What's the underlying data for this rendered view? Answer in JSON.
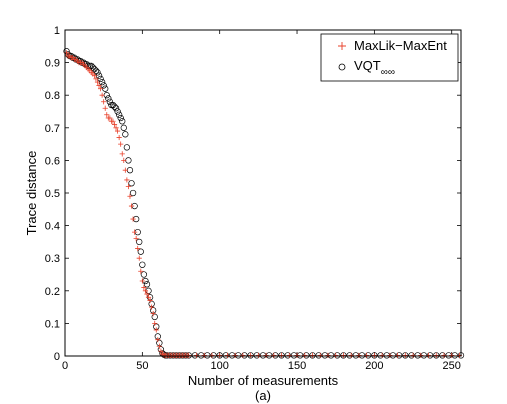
{
  "chart_data": {
    "type": "scatter",
    "title": "",
    "caption": "(a)",
    "xlabel": "Number of measurements",
    "ylabel": "Trace distance",
    "xlim": [
      0,
      256
    ],
    "ylim": [
      0,
      1
    ],
    "xticks": [
      0,
      50,
      100,
      150,
      200,
      250
    ],
    "yticks": [
      0,
      0.1,
      0.2,
      0.3,
      0.4,
      0.5,
      0.6,
      0.7,
      0.8,
      0.9,
      1
    ],
    "grid": false,
    "legend_position": "top-right",
    "colors": {
      "maxlik": "#e8402a",
      "vqt": "#000000"
    },
    "series": [
      {
        "name": "MaxLik−MaxEnt",
        "marker": "plus",
        "points": [
          [
            1,
            0.93
          ],
          [
            2,
            0.92
          ],
          [
            3,
            0.92
          ],
          [
            4,
            0.915
          ],
          [
            5,
            0.915
          ],
          [
            6,
            0.91
          ],
          [
            7,
            0.91
          ],
          [
            8,
            0.905
          ],
          [
            9,
            0.9
          ],
          [
            10,
            0.9
          ],
          [
            11,
            0.9
          ],
          [
            12,
            0.895
          ],
          [
            13,
            0.89
          ],
          [
            14,
            0.885
          ],
          [
            15,
            0.88
          ],
          [
            16,
            0.875
          ],
          [
            17,
            0.87
          ],
          [
            18,
            0.865
          ],
          [
            19,
            0.86
          ],
          [
            20,
            0.85
          ],
          [
            21,
            0.84
          ],
          [
            22,
            0.83
          ],
          [
            23,
            0.82
          ],
          [
            24,
            0.8
          ],
          [
            25,
            0.78
          ],
          [
            26,
            0.76
          ],
          [
            27,
            0.74
          ],
          [
            28,
            0.73
          ],
          [
            29,
            0.73
          ],
          [
            30,
            0.72
          ],
          [
            31,
            0.72
          ],
          [
            32,
            0.71
          ],
          [
            33,
            0.7
          ],
          [
            34,
            0.69
          ],
          [
            35,
            0.67
          ],
          [
            36,
            0.65
          ],
          [
            37,
            0.62
          ],
          [
            38,
            0.6
          ],
          [
            39,
            0.57
          ],
          [
            40,
            0.54
          ],
          [
            41,
            0.52
          ],
          [
            42,
            0.49
          ],
          [
            43,
            0.46
          ],
          [
            44,
            0.42
          ],
          [
            45,
            0.38
          ],
          [
            46,
            0.36
          ],
          [
            47,
            0.33
          ],
          [
            48,
            0.3
          ],
          [
            49,
            0.26
          ],
          [
            50,
            0.23
          ],
          [
            51,
            0.21
          ],
          [
            52,
            0.2
          ],
          [
            53,
            0.19
          ],
          [
            54,
            0.18
          ],
          [
            55,
            0.17
          ],
          [
            56,
            0.15
          ],
          [
            57,
            0.13
          ],
          [
            58,
            0.1
          ],
          [
            59,
            0.08
          ],
          [
            60,
            0.05
          ],
          [
            61,
            0.03
          ],
          [
            62,
            0.015
          ],
          [
            63,
            0.006
          ],
          [
            64,
            0.003
          ],
          [
            65,
            0.002
          ],
          [
            66,
            0.002
          ],
          [
            67,
            0.002
          ],
          [
            68,
            0.002
          ],
          [
            69,
            0.002
          ],
          [
            70,
            0.002
          ],
          [
            71,
            0.002
          ],
          [
            72,
            0.002
          ],
          [
            73,
            0.002
          ],
          [
            74,
            0.002
          ],
          [
            75,
            0.002
          ],
          [
            76,
            0.002
          ],
          [
            77,
            0.002
          ],
          [
            78,
            0.002
          ],
          [
            79,
            0.002
          ],
          [
            80,
            0.002
          ],
          [
            85,
            0.002
          ],
          [
            90,
            0.002
          ],
          [
            95,
            0.002
          ],
          [
            100,
            0.002
          ],
          [
            105,
            0.002
          ],
          [
            110,
            0.002
          ],
          [
            115,
            0.002
          ],
          [
            120,
            0.002
          ],
          [
            125,
            0.002
          ],
          [
            130,
            0.002
          ],
          [
            135,
            0.002
          ],
          [
            140,
            0.002
          ],
          [
            145,
            0.002
          ],
          [
            150,
            0.002
          ],
          [
            155,
            0.002
          ],
          [
            160,
            0.002
          ],
          [
            165,
            0.002
          ],
          [
            170,
            0.002
          ],
          [
            175,
            0.002
          ],
          [
            180,
            0.002
          ],
          [
            185,
            0.002
          ],
          [
            190,
            0.002
          ],
          [
            195,
            0.002
          ],
          [
            200,
            0.002
          ],
          [
            205,
            0.002
          ],
          [
            210,
            0.002
          ],
          [
            215,
            0.002
          ],
          [
            220,
            0.002
          ],
          [
            225,
            0.002
          ],
          [
            230,
            0.002
          ],
          [
            235,
            0.002
          ],
          [
            240,
            0.002
          ],
          [
            245,
            0.002
          ],
          [
            250,
            0.002
          ],
          [
            255,
            0.002
          ]
        ]
      },
      {
        "name": "VQT∞∞",
        "name_main": "VQT",
        "name_sub": "∞∞",
        "marker": "circle",
        "points": [
          [
            1,
            0.935
          ],
          [
            2,
            0.925
          ],
          [
            3,
            0.92
          ],
          [
            4,
            0.92
          ],
          [
            5,
            0.915
          ],
          [
            6,
            0.915
          ],
          [
            7,
            0.91
          ],
          [
            8,
            0.91
          ],
          [
            9,
            0.905
          ],
          [
            10,
            0.905
          ],
          [
            11,
            0.9
          ],
          [
            12,
            0.9
          ],
          [
            13,
            0.895
          ],
          [
            14,
            0.895
          ],
          [
            15,
            0.89
          ],
          [
            16,
            0.89
          ],
          [
            17,
            0.89
          ],
          [
            18,
            0.885
          ],
          [
            19,
            0.88
          ],
          [
            20,
            0.875
          ],
          [
            21,
            0.87
          ],
          [
            22,
            0.86
          ],
          [
            23,
            0.85
          ],
          [
            24,
            0.84
          ],
          [
            25,
            0.83
          ],
          [
            26,
            0.82
          ],
          [
            27,
            0.8
          ],
          [
            28,
            0.79
          ],
          [
            29,
            0.78
          ],
          [
            30,
            0.77
          ],
          [
            31,
            0.77
          ],
          [
            32,
            0.765
          ],
          [
            33,
            0.76
          ],
          [
            34,
            0.75
          ],
          [
            35,
            0.74
          ],
          [
            36,
            0.73
          ],
          [
            37,
            0.72
          ],
          [
            38,
            0.7
          ],
          [
            39,
            0.68
          ],
          [
            40,
            0.64
          ],
          [
            41,
            0.6
          ],
          [
            42,
            0.57
          ],
          [
            43,
            0.53
          ],
          [
            44,
            0.5
          ],
          [
            45,
            0.46
          ],
          [
            46,
            0.42
          ],
          [
            47,
            0.38
          ],
          [
            48,
            0.35
          ],
          [
            49,
            0.32
          ],
          [
            50,
            0.28
          ],
          [
            51,
            0.25
          ],
          [
            52,
            0.23
          ],
          [
            53,
            0.22
          ],
          [
            54,
            0.2
          ],
          [
            55,
            0.18
          ],
          [
            56,
            0.16
          ],
          [
            57,
            0.14
          ],
          [
            58,
            0.12
          ],
          [
            59,
            0.09
          ],
          [
            60,
            0.06
          ],
          [
            61,
            0.04
          ],
          [
            62,
            0.02
          ],
          [
            63,
            0.008
          ],
          [
            64,
            0.004
          ],
          [
            65,
            0.002
          ],
          [
            66,
            0.002
          ],
          [
            68,
            0.002
          ],
          [
            70,
            0.002
          ],
          [
            72,
            0.002
          ],
          [
            74,
            0.002
          ],
          [
            76,
            0.002
          ],
          [
            78,
            0.002
          ],
          [
            80,
            0.002
          ],
          [
            84,
            0.002
          ],
          [
            88,
            0.002
          ],
          [
            92,
            0.002
          ],
          [
            96,
            0.002
          ],
          [
            100,
            0.002
          ],
          [
            104,
            0.002
          ],
          [
            108,
            0.002
          ],
          [
            112,
            0.002
          ],
          [
            116,
            0.002
          ],
          [
            120,
            0.002
          ],
          [
            124,
            0.002
          ],
          [
            128,
            0.002
          ],
          [
            132,
            0.002
          ],
          [
            136,
            0.002
          ],
          [
            140,
            0.002
          ],
          [
            144,
            0.002
          ],
          [
            148,
            0.002
          ],
          [
            152,
            0.002
          ],
          [
            156,
            0.002
          ],
          [
            160,
            0.002
          ],
          [
            164,
            0.002
          ],
          [
            168,
            0.002
          ],
          [
            172,
            0.002
          ],
          [
            176,
            0.002
          ],
          [
            180,
            0.002
          ],
          [
            184,
            0.002
          ],
          [
            188,
            0.002
          ],
          [
            192,
            0.002
          ],
          [
            196,
            0.002
          ],
          [
            200,
            0.002
          ],
          [
            204,
            0.002
          ],
          [
            208,
            0.002
          ],
          [
            212,
            0.002
          ],
          [
            216,
            0.002
          ],
          [
            220,
            0.002
          ],
          [
            224,
            0.002
          ],
          [
            228,
            0.002
          ],
          [
            232,
            0.002
          ],
          [
            236,
            0.002
          ],
          [
            240,
            0.002
          ],
          [
            244,
            0.002
          ],
          [
            248,
            0.002
          ],
          [
            252,
            0.002
          ],
          [
            256,
            0.002
          ]
        ]
      }
    ]
  }
}
